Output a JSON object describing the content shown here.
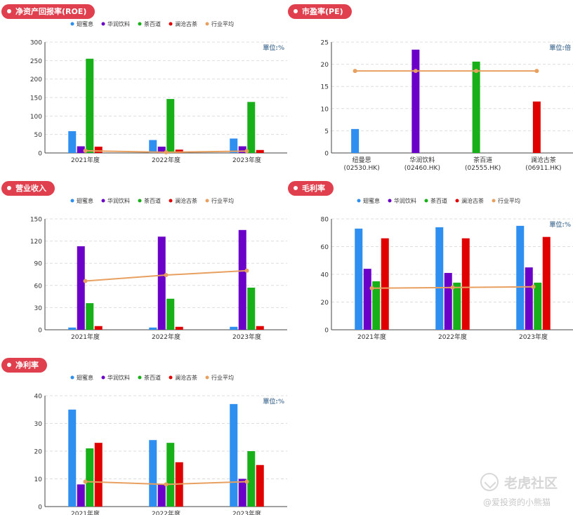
{
  "colors": {
    "series": [
      "#2e8ff0",
      "#6b00c8",
      "#18b018",
      "#e00000",
      "#e8a060"
    ],
    "badge": "#e0404e",
    "grid": "#dddddd",
    "axis": "#444444",
    "text": "#333333",
    "unit": "#6a8aa8"
  },
  "watermark": {
    "title": "老虎社区",
    "subtitle": "@爱投资的小熊猫"
  },
  "chart_data": [
    {
      "title": "净资产回报率(ROE)",
      "type": "bar",
      "unit": "單位:%",
      "categories": [
        "2021年度",
        "2022年度",
        "2023年度"
      ],
      "ylim": [
        0,
        300
      ],
      "yticks": [
        0,
        50,
        100,
        150,
        200,
        250,
        300
      ],
      "grid": true,
      "legend": "top",
      "series": [
        {
          "name": "翅蜜息",
          "values": [
            59,
            35,
            39
          ]
        },
        {
          "name": "华润饮料",
          "values": [
            18,
            17,
            18
          ]
        },
        {
          "name": "茶百道",
          "values": [
            255,
            146,
            138
          ]
        },
        {
          "name": "澜沧古茶",
          "values": [
            17,
            9,
            8
          ]
        }
      ],
      "line": {
        "name": "行业平均",
        "values": [
          6,
          2,
          5
        ]
      }
    },
    {
      "title": "市盈率(PE)",
      "type": "bar",
      "unit": "單位:倍",
      "categories": [
        "纽曼思\n(02530.HK)",
        "华润饮料\n(02460.HK)",
        "茶百道\n(02555.HK)",
        "澜沧古茶\n(06911.HK)"
      ],
      "ylim": [
        0,
        25
      ],
      "yticks": [
        0,
        5,
        10,
        15,
        20,
        25
      ],
      "grid": true,
      "values": [
        5.4,
        23.3,
        20.6,
        11.6
      ],
      "line": {
        "name": "行业平均",
        "values": [
          18.5,
          18.5,
          18.5,
          18.5
        ]
      }
    },
    {
      "title": "营业收入",
      "type": "bar",
      "unit": "",
      "categories": [
        "2021年度",
        "2022年度",
        "2023年度"
      ],
      "ylim": [
        0,
        150
      ],
      "yticks": [
        0,
        30,
        60,
        90,
        120,
        150
      ],
      "grid": true,
      "legend": "top",
      "series": [
        {
          "name": "翅蜜息",
          "values": [
            3,
            3,
            4
          ]
        },
        {
          "name": "华润饮料",
          "values": [
            113,
            126,
            135
          ]
        },
        {
          "name": "茶百道",
          "values": [
            36,
            42,
            57
          ]
        },
        {
          "name": "澜沧古茶",
          "values": [
            5,
            4,
            5
          ]
        }
      ],
      "line": {
        "name": "行业平均",
        "values": [
          66,
          74,
          80
        ]
      }
    },
    {
      "title": "毛利率",
      "type": "bar",
      "unit": "單位:%",
      "categories": [
        "2021年度",
        "2022年度",
        "2023年度"
      ],
      "ylim": [
        0,
        80
      ],
      "yticks": [
        0,
        20,
        40,
        60,
        80
      ],
      "grid": true,
      "legend": "top",
      "series": [
        {
          "name": "翅蜜息",
          "values": [
            73,
            74,
            75
          ]
        },
        {
          "name": "华润饮料",
          "values": [
            44,
            41,
            45
          ]
        },
        {
          "name": "茶百道",
          "values": [
            35,
            34,
            34
          ]
        },
        {
          "name": "澜沧古茶",
          "values": [
            66,
            66,
            67
          ]
        }
      ],
      "line": {
        "name": "行业平均",
        "values": [
          30,
          30.5,
          31
        ]
      }
    },
    {
      "title": "净利率",
      "type": "bar",
      "unit": "單位:%",
      "categories": [
        "2021年度",
        "2022年度",
        "2023年度"
      ],
      "ylim": [
        0,
        40
      ],
      "yticks": [
        0,
        10,
        20,
        30,
        40
      ],
      "grid": true,
      "legend": "top",
      "series": [
        {
          "name": "翅蜜息",
          "values": [
            35,
            24,
            37
          ]
        },
        {
          "name": "华润饮料",
          "values": [
            8,
            8,
            10
          ]
        },
        {
          "name": "茶百道",
          "values": [
            21,
            23,
            20
          ]
        },
        {
          "name": "澜沧古茶",
          "values": [
            23,
            16,
            15
          ]
        }
      ],
      "line": {
        "name": "行业平均",
        "values": [
          9,
          8,
          9
        ]
      }
    }
  ]
}
